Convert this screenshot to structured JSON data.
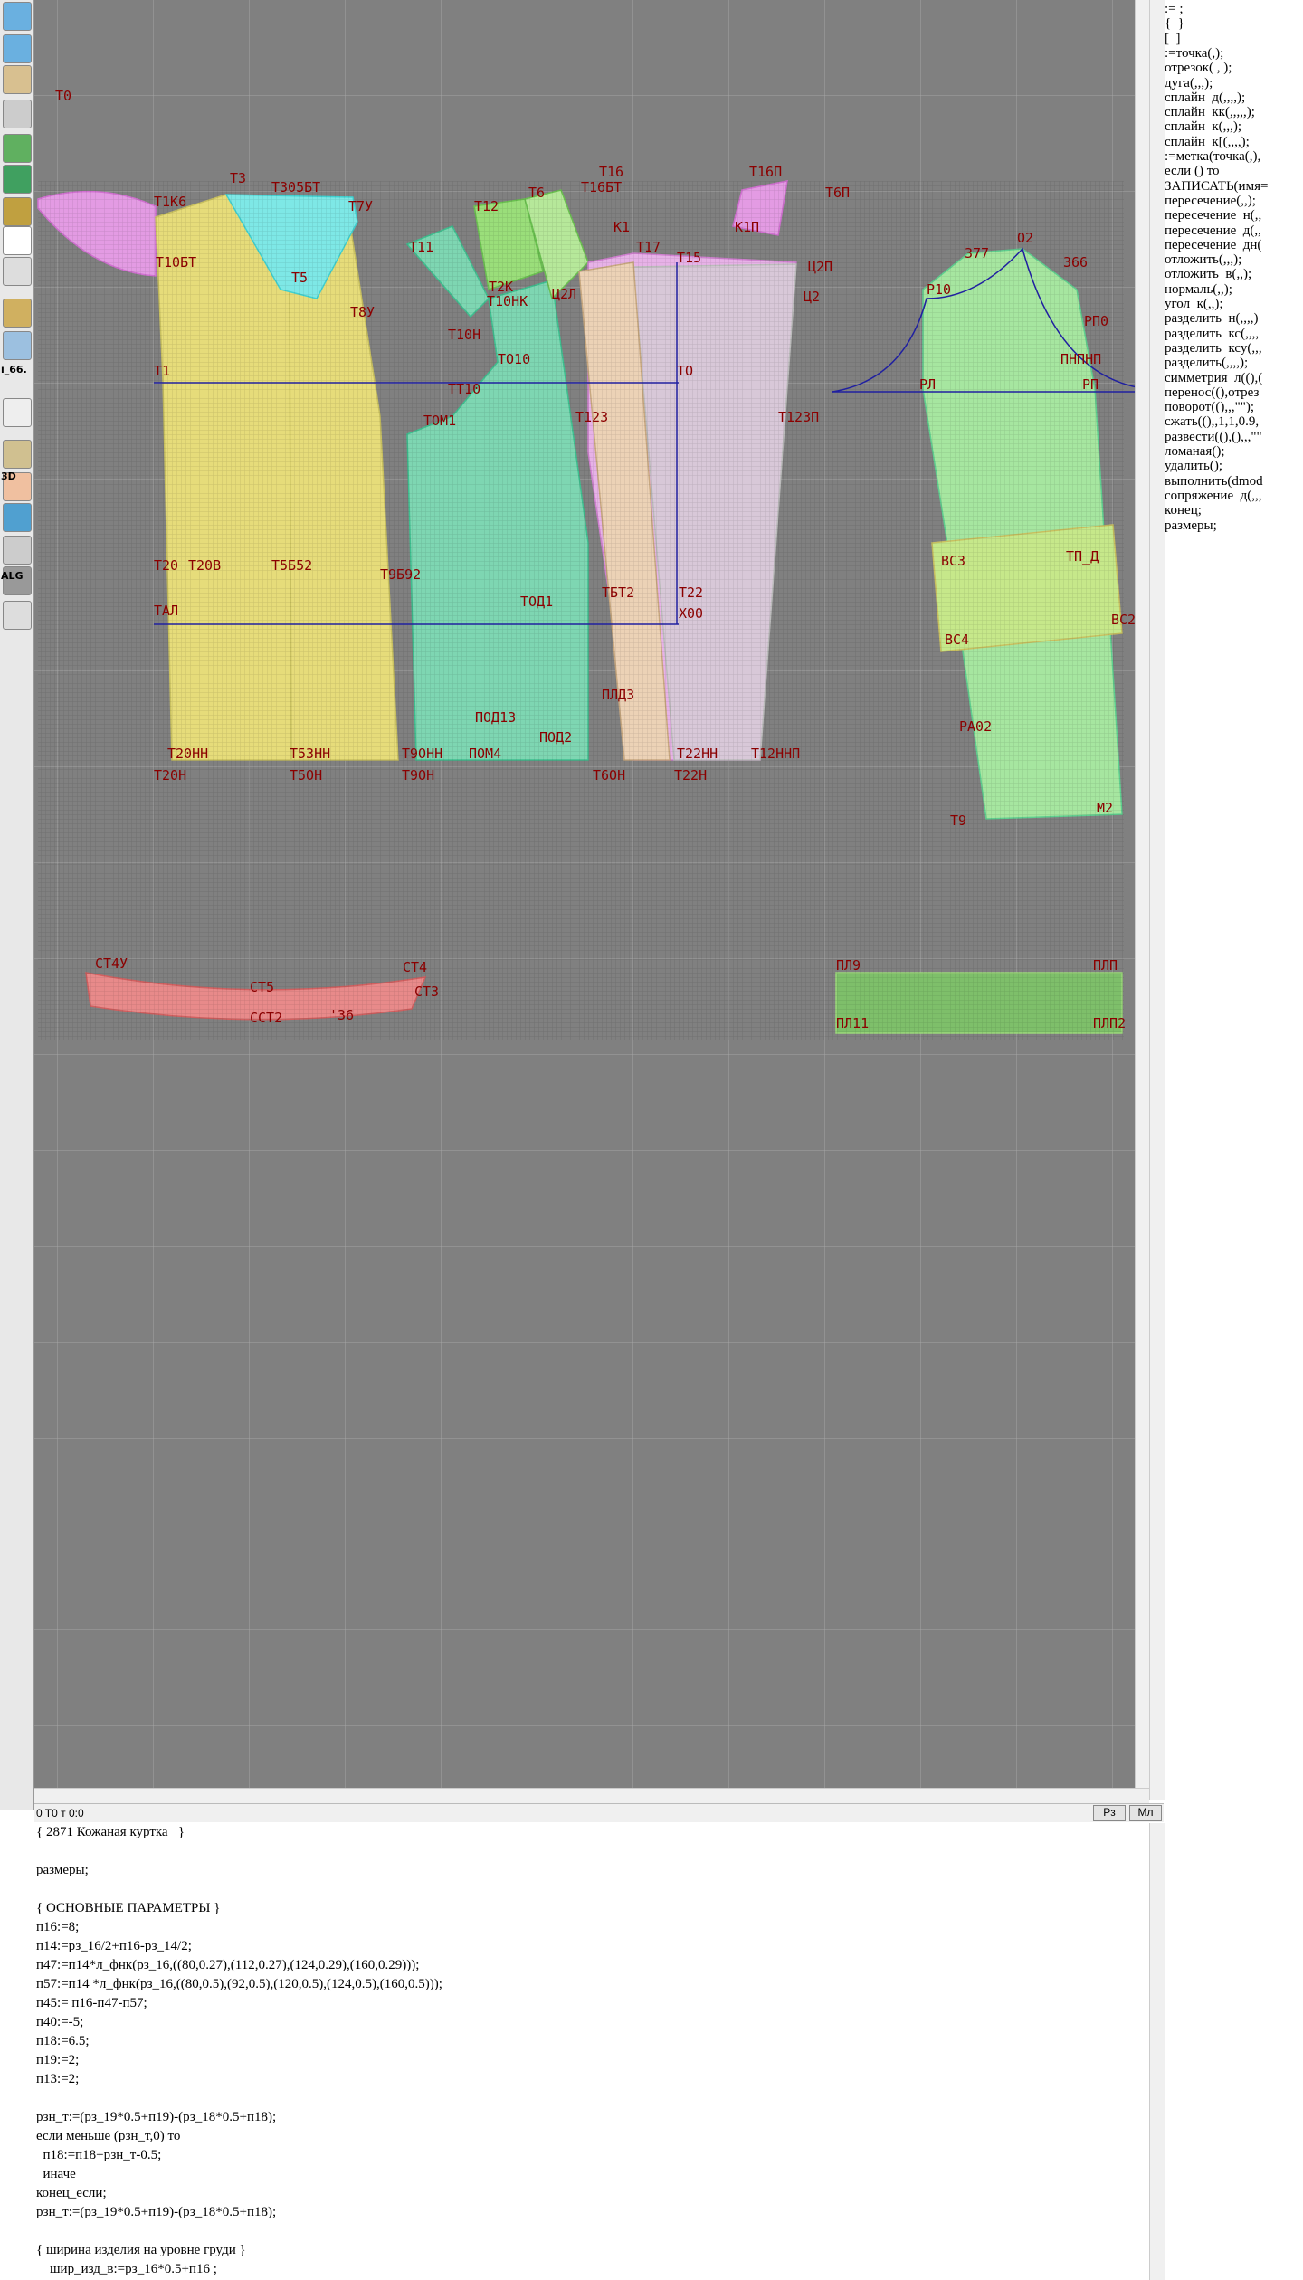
{
  "toolbar": {
    "labels": [
      "i_66.",
      "3D",
      "ALG"
    ]
  },
  "canvas": {
    "labels": [
      "Т0",
      "Т1К6",
      "Т3",
      "Т305БТ",
      "Т7У",
      "Т10БТ",
      "Т5",
      "Т8У",
      "Т1",
      "Т11",
      "Т12",
      "Т6",
      "Т16",
      "Т16БТ",
      "К1",
      "Т17",
      "Т15",
      "Т16П",
      "Т6П",
      "К1П",
      "Ц2П",
      "Ц2",
      "Т2К",
      "Т10НК",
      "Ц2Л",
      "Т10Н",
      "ТО10",
      "ТО",
      "ТТ10",
      "ТОМ1",
      "Т123",
      "Т123П",
      "Т20",
      "Т20В",
      "Т5Б52",
      "Т9Б92",
      "ТОД1",
      "ТБТ2",
      "Т22",
      "Х00",
      "ТАЛ",
      "ПЛД3",
      "ПОД2",
      "ПОД13",
      "Т20НН",
      "Т20Н",
      "Т53НН",
      "Т5ОН",
      "Т9ОНН",
      "Т9ОН",
      "ПОМ4",
      "Т6ОН",
      "Т22НН",
      "Т22Н",
      "Т12ННП",
      "О2",
      "377",
      "366",
      "Р10",
      "РП0",
      "ПНПНП",
      "РЛ",
      "РП",
      "ВС3",
      "ВС4",
      "ВС2",
      "ТП_Д",
      "РА02",
      "Т9",
      "М2",
      "СТ4У",
      "СТ5",
      "СТ3",
      "ССТ2",
      "'36",
      "СТ4",
      "ПЛ9",
      "ПЛ11",
      "ПЛП",
      "ПЛП2"
    ]
  },
  "commands": [
    ":= ;",
    "{  }",
    "[  ]",
    ":=точка(,);",
    "отрезок( , );",
    "дуга(,,,);",
    "сплайн  д(,,,,);",
    "сплайн  кк(,,,,,);",
    "сплайн  к(,,,);",
    "сплайн  к[(,,,,);",
    ":=метка(точка(,),",
    "если () то",
    "ЗАПИСАТЬ(имя=",
    "пересечение(,,);",
    "пересечение  н(,,",
    "пересечение  д(,,",
    "пересечение  дн(",
    "отложить(,,,);",
    "отложить  в(,,);",
    "нормаль(,,);",
    "угол  к(,,);",
    "разделить  н(,,,,)",
    "разделить  кс(,,,,",
    "разделить  ксу(,,,",
    "разделить(,,,,);",
    "симметрия  л((),(",
    "перенос((),отрез",
    "поворот((),,,\"\");",
    "сжать((),,1,1,0.9,",
    "развести((),(),,,\"\"",
    "ломаная();",
    "удалить();",
    "выполнить(dmod",
    "сопряжение  д(,,,",
    "конец;",
    "размеры;"
  ],
  "status": {
    "text": "0   T0 т 0:0",
    "buttons": [
      "Рз",
      "Мл"
    ]
  },
  "code": {
    "lines": [
      "{ 2871 Кожаная куртка   }",
      "размеры;",
      "{ ОСНОВНЫЕ ПАРАМЕТРЫ }",
      "п16:=8;",
      "п14:=рз_16/2+п16-рз_14/2;",
      "п47:=п14*л_фнк(рз_16,((80,0.27),(112,0.27),(124,0.29),(160,0.29)));",
      "п57:=п14 *л_фнк(рз_16,((80,0.5),(92,0.5),(120,0.5),(124,0.5),(160,0.5)));",
      "п45:= п16-п47-п57;",
      "п40:=-5;",
      "п18:=6.5;",
      "п19:=2;",
      "п13:=2;",
      "рзн_т:=(рз_19*0.5+п19)-(рз_18*0.5+п18);",
      "если меньше (рзн_т,0) то",
      "  п18:=п18+рзн_т-0.5;",
      "  иначе",
      "конец_если;",
      "рзн_т:=(рз_19*0.5+п19)-(рз_18*0.5+п18);",
      "{ ширина изделия на уровне груди }",
      "    шир_изд_в:=рз_16*0.5+п16 ;"
    ]
  }
}
